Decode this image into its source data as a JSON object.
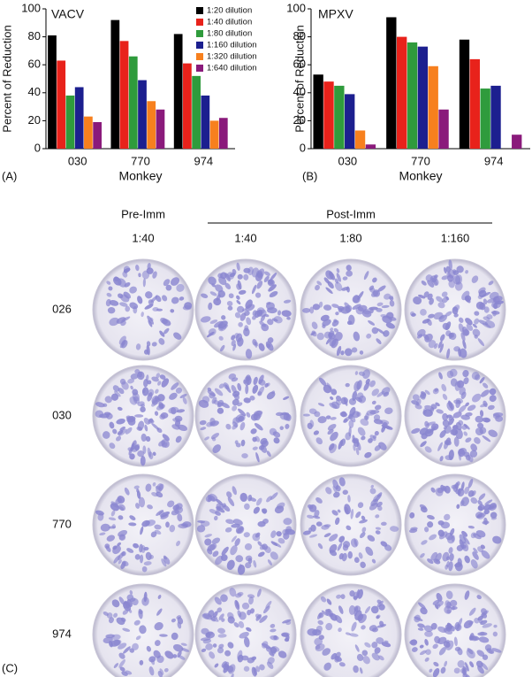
{
  "chart_data": [
    {
      "type": "bar",
      "title": "VACV",
      "panel_label": "(A)",
      "x_label": "Monkey",
      "y_label": "Percent of Reduction",
      "categories": [
        "030",
        "770",
        "974"
      ],
      "series": [
        {
          "name": "1:20 dilution",
          "color": "#000000",
          "values": [
            81,
            92,
            82
          ]
        },
        {
          "name": "1:40 dilution",
          "color": "#e8221b",
          "values": [
            63,
            77,
            61
          ]
        },
        {
          "name": "1:80 dilution",
          "color": "#2f9b3c",
          "values": [
            38,
            66,
            52
          ]
        },
        {
          "name": "1:160 dilution",
          "color": "#1c1f8f",
          "values": [
            44,
            49,
            38
          ]
        },
        {
          "name": "1:320 dilution",
          "color": "#f7801e",
          "values": [
            23,
            34,
            20
          ]
        },
        {
          "name": "1:640 dilution",
          "color": "#8a1a7b",
          "values": [
            19,
            28,
            22
          ]
        }
      ],
      "ylim": [
        0,
        100
      ],
      "yticks": [
        0,
        20,
        40,
        60,
        80,
        100
      ],
      "legend": "top-right"
    },
    {
      "type": "bar",
      "title": "MPXV",
      "panel_label": "(B)",
      "x_label": "Monkey",
      "y_label": "Percent of Reduction",
      "categories": [
        "030",
        "770",
        "974"
      ],
      "series": [
        {
          "color": "#000000",
          "values": [
            53,
            94,
            78
          ]
        },
        {
          "color": "#e8221b",
          "values": [
            48,
            80,
            64
          ]
        },
        {
          "color": "#2f9b3c",
          "values": [
            45,
            76,
            43
          ]
        },
        {
          "color": "#1c1f8f",
          "values": [
            39,
            73,
            45
          ]
        },
        {
          "color": "#f7801e",
          "values": [
            13,
            59,
            0
          ]
        },
        {
          "color": "#8a1a7b",
          "values": [
            3,
            28,
            10
          ]
        }
      ],
      "ylim": [
        0,
        100
      ],
      "yticks": [
        0,
        20,
        40,
        60,
        80,
        100
      ]
    }
  ],
  "panel_c": {
    "label": "(C)",
    "pre_header": "Pre-Imm",
    "post_header": "Post-Imm",
    "columns": [
      "1:40",
      "1:40",
      "1:80",
      "1:160"
    ],
    "rows": [
      "026",
      "030",
      "770",
      "974"
    ]
  }
}
